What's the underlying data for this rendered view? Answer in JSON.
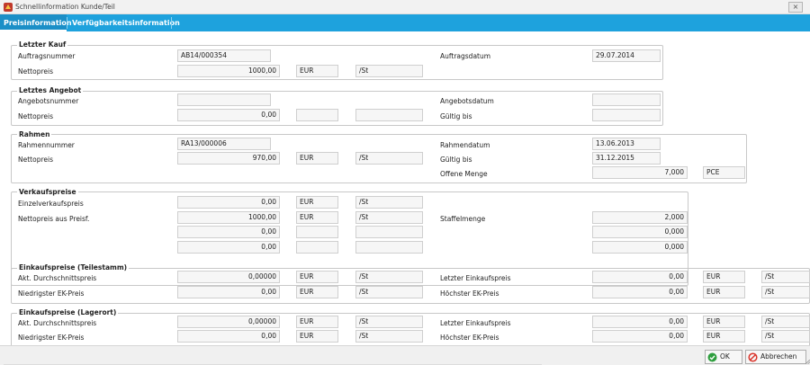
{
  "window": {
    "title": "Schnellinformation Kunde/Teil",
    "close_glyph": "×",
    "icon": "app-icon"
  },
  "tabs": [
    {
      "label": "Preisinformation",
      "active": true
    },
    {
      "label": "Verfügbarkeitsinformation",
      "active": false
    }
  ],
  "letzter_kauf": {
    "title": "Letzter Kauf",
    "auftragsnummer_label": "Auftragsnummer",
    "auftragsnummer": "AB14/000354",
    "auftragsdatum_label": "Auftragsdatum",
    "auftragsdatum": "29.07.2014",
    "nettopreis_label": "Nettopreis",
    "nettopreis": "1000,00",
    "waehrung": "EUR",
    "einheit": "/St"
  },
  "letztes_angebot": {
    "title": "Letztes Angebot",
    "angebotsnummer_label": "Angebotsnummer",
    "angebotsnummer": "",
    "angebotsdatum_label": "Angebotsdatum",
    "angebotsdatum": "",
    "nettopreis_label": "Nettopreis",
    "nettopreis": "0,00",
    "waehrung": "",
    "einheit": "",
    "gueltig_label": "Gültig bis",
    "gueltig_bis": ""
  },
  "rahmen": {
    "title": "Rahmen",
    "rahmennummer_label": "Rahmennummer",
    "rahmennummer": "RA13/000006",
    "rahmendatum_label": "Rahmendatum",
    "rahmendatum": "13.06.2013",
    "nettopreis_label": "Nettopreis",
    "nettopreis": "970,00",
    "waehrung": "EUR",
    "einheit": "/St",
    "gueltig_label": "Gültig bis",
    "gueltig_bis": "31.12.2015",
    "offene_menge_label": "Offene Menge",
    "offene_menge": "7,000",
    "mengeneinheit": "PCE"
  },
  "verkaufspreise": {
    "title": "Verkaufspreise",
    "einzel_label": "Einzelverkaufspreis",
    "einzel": "0,00",
    "einzel_waehrung": "EUR",
    "einzel_einheit": "/St",
    "preisf_label": "Nettopreis aus Preisf.",
    "staffel_label": "Staffelmenge",
    "rows": [
      {
        "preis": "1000,00",
        "waehrung": "EUR",
        "einheit": "/St",
        "menge": "2,000"
      },
      {
        "preis": "0,00",
        "waehrung": "",
        "einheit": "",
        "menge": "0,000"
      },
      {
        "preis": "0,00",
        "waehrung": "",
        "einheit": "",
        "menge": "0,000"
      }
    ]
  },
  "ek_teilestamm": {
    "title": "Einkaufspreise (Teilestamm)",
    "akt_label": "Akt. Durchschnittspreis",
    "akt": "0,00000",
    "akt_waehrung": "EUR",
    "akt_einheit": "/St",
    "letzter_label": "Letzter Einkaufspreis",
    "letzter": "0,00",
    "letzter_waehrung": "EUR",
    "letzter_einheit": "/St",
    "niedrig_label": "Niedrigster EK-Preis",
    "niedrig": "0,00",
    "niedrig_waehrung": "EUR",
    "niedrig_einheit": "/St",
    "hoch_label": "Höchster EK-Preis",
    "hoch": "0,00",
    "hoch_waehrung": "EUR",
    "hoch_einheit": "/St"
  },
  "ek_lagerort": {
    "title": "Einkaufspreise (Lagerort)",
    "akt_label": "Akt. Durchschnittspreis",
    "akt": "0,00000",
    "akt_waehrung": "EUR",
    "akt_einheit": "/St",
    "letzter_label": "Letzter Einkaufspreis",
    "letzter": "0,00",
    "letzter_waehrung": "EUR",
    "letzter_einheit": "/St",
    "niedrig_label": "Niedrigster EK-Preis",
    "niedrig": "0,00",
    "niedrig_waehrung": "EUR",
    "niedrig_einheit": "/St",
    "hoch_label": "Höchster EK-Preis",
    "hoch": "0,00",
    "hoch_waehrung": "EUR",
    "hoch_einheit": "/St"
  },
  "buttons": {
    "ok": "OK",
    "abbrechen": "Abbrechen"
  },
  "colors": {
    "tab_bar": "#1ea2dd",
    "ok_icon": "#2e9e3e",
    "cancel_icon": "#d9342b"
  }
}
